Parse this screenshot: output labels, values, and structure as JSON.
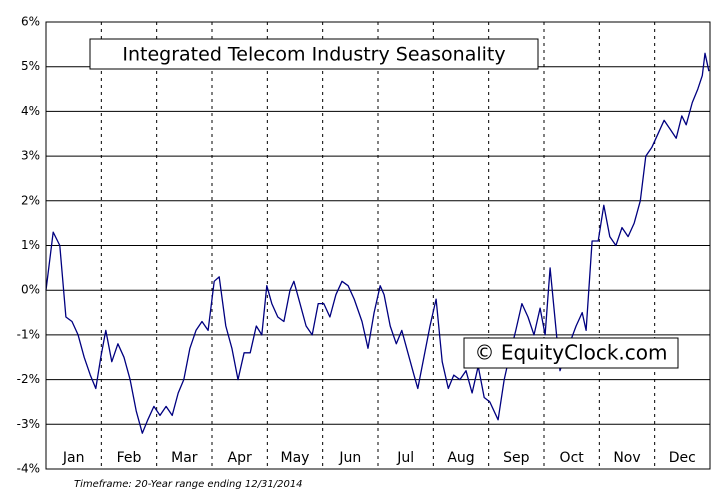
{
  "chart_data": {
    "type": "line",
    "title": "Integrated Telecom Industry Seasonality",
    "watermark": "© EquityClock.com",
    "footnote": "Timeframe: 20-Year range ending 12/31/2014",
    "categories": [
      "Jan",
      "Feb",
      "Mar",
      "Apr",
      "May",
      "Jun",
      "Jul",
      "Aug",
      "Sep",
      "Oct",
      "Nov",
      "Dec"
    ],
    "xlim": [
      0,
      12
    ],
    "ylim": [
      -4,
      6
    ],
    "yticks": [
      {
        "value": -4,
        "label": "-4%"
      },
      {
        "value": -3,
        "label": "-3%"
      },
      {
        "value": -2,
        "label": "-2%"
      },
      {
        "value": -1,
        "label": "-1%"
      },
      {
        "value": 0,
        "label": "0%"
      },
      {
        "value": 1,
        "label": "1%"
      },
      {
        "value": 2,
        "label": "2%"
      },
      {
        "value": 3,
        "label": "3%"
      },
      {
        "value": 4,
        "label": "4%"
      },
      {
        "value": 5,
        "label": "5%"
      },
      {
        "value": 6,
        "label": "6%"
      }
    ],
    "grid": true,
    "series": [
      {
        "color": "#000080",
        "x": [
          0,
          0.13,
          0.25,
          0.36,
          0.47,
          0.58,
          0.69,
          0.8,
          0.9,
          0.99,
          1.08,
          1.19,
          1.3,
          1.41,
          1.52,
          1.63,
          1.74,
          1.84,
          1.95,
          2.06,
          2.17,
          2.28,
          2.39,
          2.49,
          2.6,
          2.71,
          2.82,
          2.93,
          3.04,
          3.13,
          3.25,
          3.36,
          3.47,
          3.58,
          3.69,
          3.8,
          3.9,
          3.99,
          4.08,
          4.19,
          4.3,
          4.41,
          4.48,
          4.59,
          4.7,
          4.81,
          4.92,
          5.02,
          5.13,
          5.24,
          5.35,
          5.46,
          5.57,
          5.71,
          5.82,
          5.93,
          6.04,
          6.11,
          6.22,
          6.33,
          6.43,
          6.54,
          6.65,
          6.72,
          6.83,
          6.94,
          7.05,
          7.16,
          7.27,
          7.37,
          7.48,
          7.59,
          7.7,
          7.81,
          7.92,
          8.02,
          8.17,
          8.28,
          8.39,
          8.49,
          8.6,
          8.71,
          8.82,
          8.93,
          9.02,
          9.11,
          9.29,
          9.43,
          9.58,
          9.69,
          9.76,
          9.87,
          9.98,
          10.08,
          10.19,
          10.3,
          10.41,
          10.52,
          10.63,
          10.74,
          10.84,
          10.95,
          11.06,
          11.17,
          11.28,
          11.39,
          11.49,
          11.57,
          11.68,
          11.78,
          11.86,
          11.91,
          11.98
        ],
        "values": [
          0,
          1.3,
          1.0,
          -0.6,
          -0.7,
          -1.0,
          -1.5,
          -1.9,
          -2.2,
          -1.5,
          -0.9,
          -1.6,
          -1.2,
          -1.5,
          -2.0,
          -2.7,
          -3.2,
          -2.9,
          -2.6,
          -2.8,
          -2.6,
          -2.8,
          -2.3,
          -2.0,
          -1.3,
          -0.9,
          -0.7,
          -0.9,
          0.2,
          0.3,
          -0.8,
          -1.3,
          -2.0,
          -1.4,
          -1.4,
          -0.8,
          -1.0,
          0.1,
          -0.3,
          -0.6,
          -0.7,
          0.0,
          0.2,
          -0.3,
          -0.8,
          -1.0,
          -0.3,
          -0.3,
          -0.6,
          -0.1,
          0.2,
          0.1,
          -0.2,
          -0.7,
          -1.3,
          -0.5,
          0.1,
          -0.1,
          -0.8,
          -1.2,
          -0.9,
          -1.4,
          -1.9,
          -2.2,
          -1.5,
          -0.8,
          -0.2,
          -1.6,
          -2.2,
          -1.9,
          -2.0,
          -1.8,
          -2.3,
          -1.7,
          -2.4,
          -2.5,
          -2.9,
          -2.0,
          -1.4,
          -0.9,
          -0.3,
          -0.6,
          -1.0,
          -0.4,
          -1.0,
          0.5,
          -1.8,
          -1.3,
          -0.8,
          -0.5,
          -0.9,
          1.1,
          1.1,
          1.9,
          1.2,
          1.0,
          1.4,
          1.2,
          1.5,
          2.0,
          3.0,
          3.2,
          3.5,
          3.8,
          3.6,
          3.4,
          3.9,
          3.7,
          4.2,
          4.5,
          4.8,
          5.3,
          4.9
        ]
      }
    ]
  }
}
